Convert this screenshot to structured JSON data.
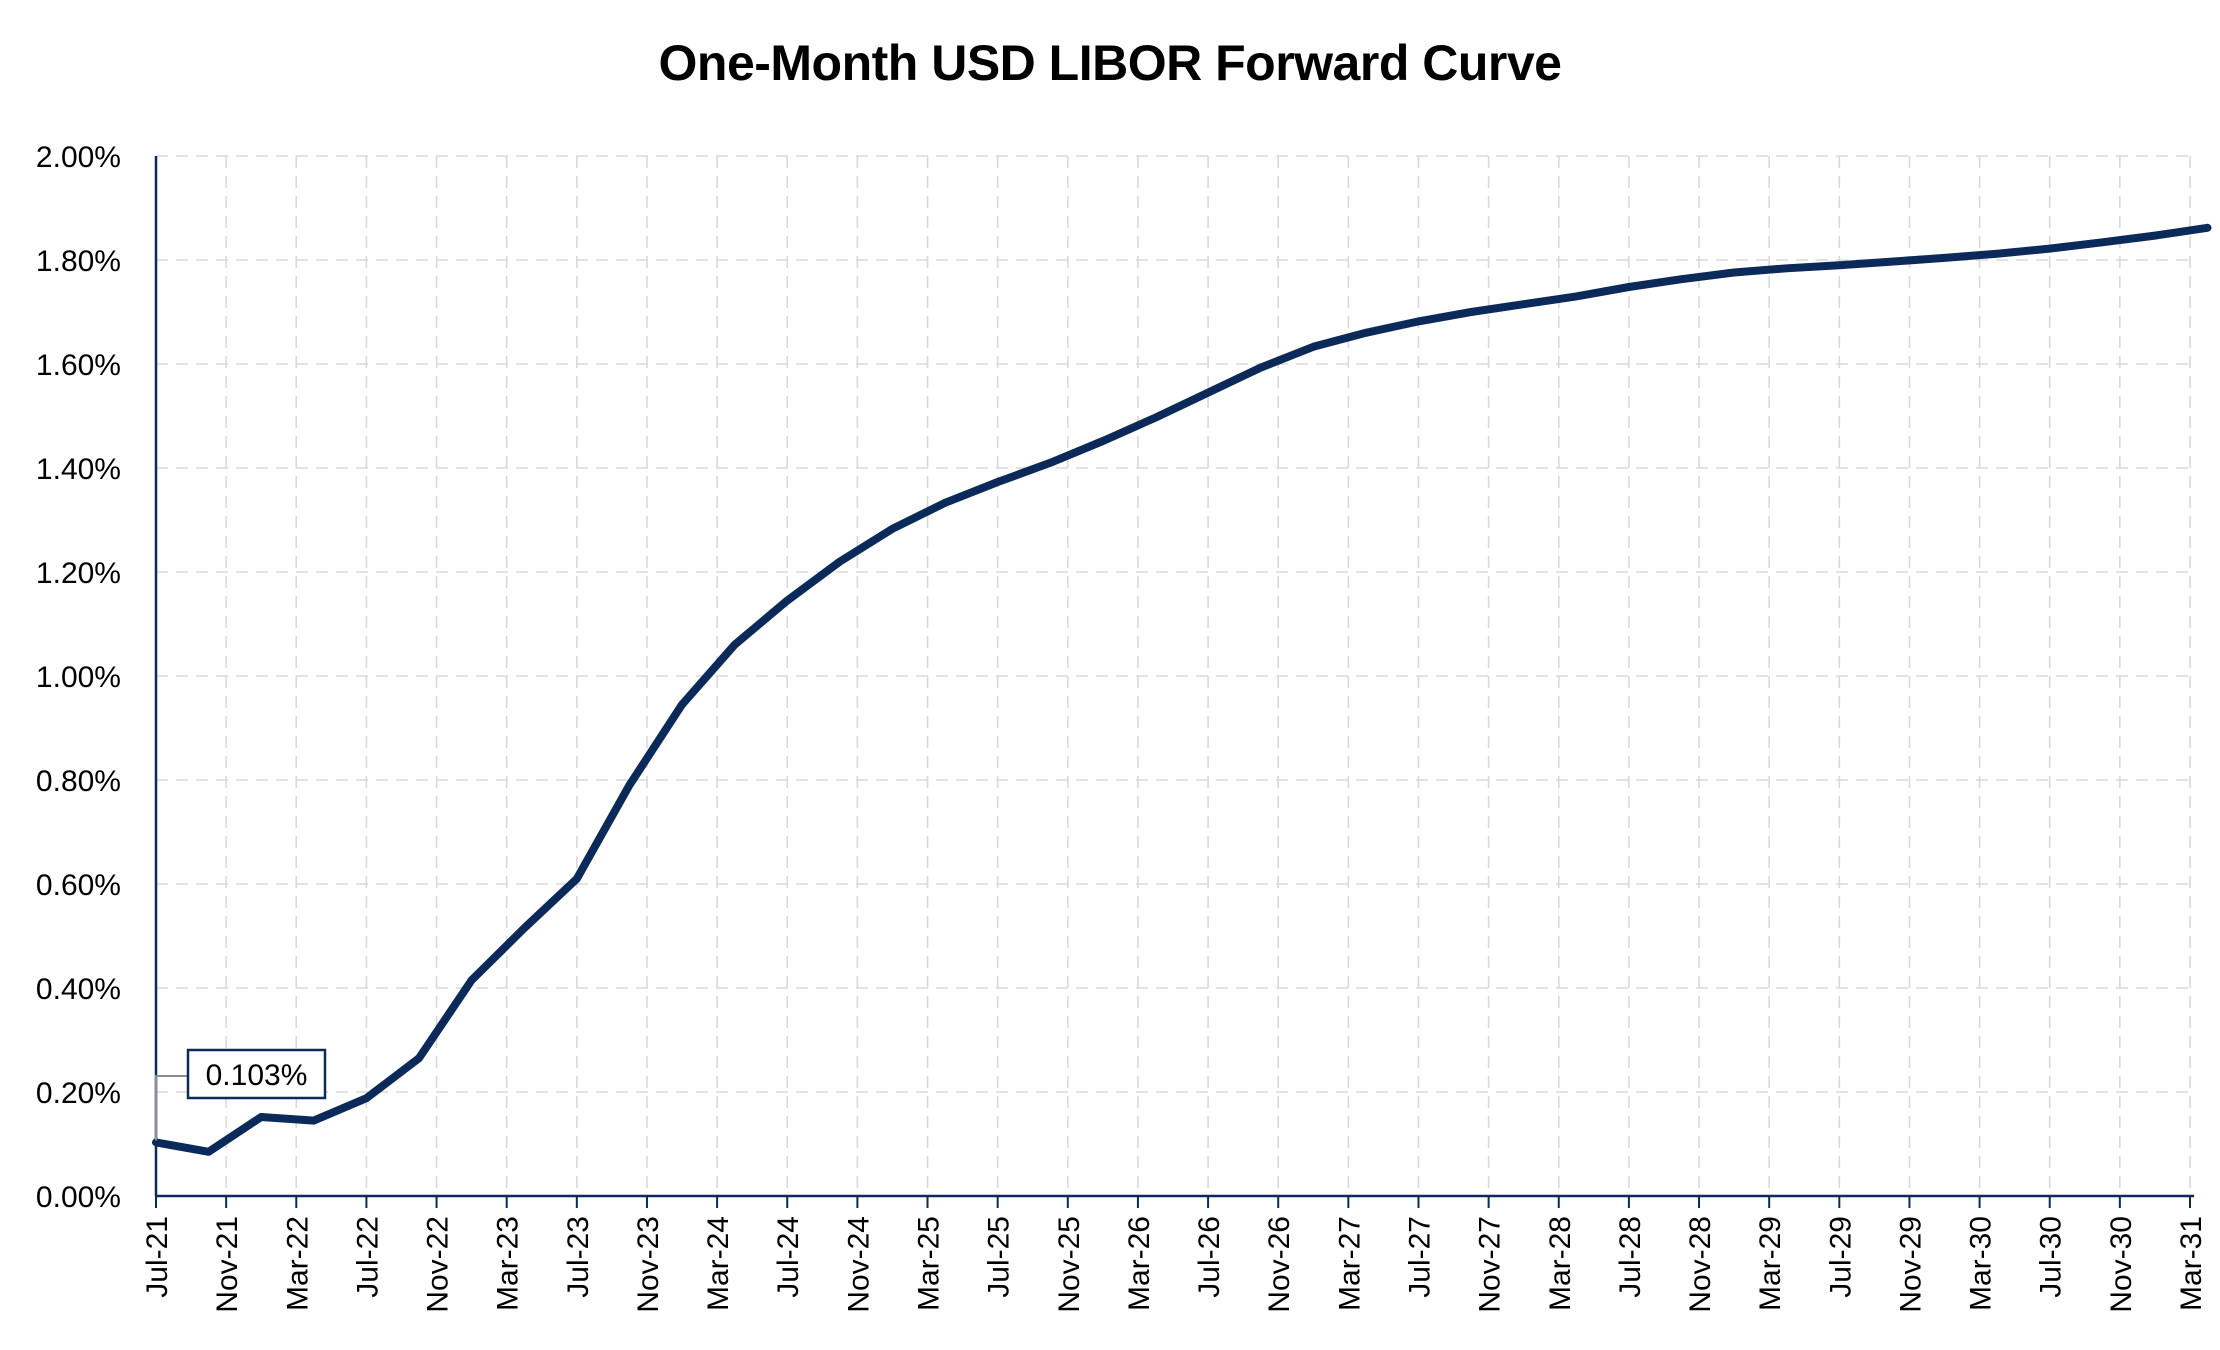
{
  "chart_data": {
    "type": "line",
    "title": "One-Month USD LIBOR Forward Curve",
    "xlabel": "",
    "ylabel": "",
    "ylim": [
      0,
      2.0
    ],
    "yticks": [
      0.0,
      0.2,
      0.4,
      0.6,
      0.8,
      1.0,
      1.2,
      1.4,
      1.6,
      1.8,
      2.0
    ],
    "ytick_labels": [
      "0.00%",
      "0.20%",
      "0.40%",
      "0.60%",
      "0.80%",
      "1.00%",
      "1.20%",
      "1.40%",
      "1.60%",
      "1.80%",
      "2.00%"
    ],
    "xlim": [
      "Jul-21",
      "Mar-31"
    ],
    "xtick_labels": [
      "Jul-21",
      "Nov-21",
      "Mar-22",
      "Jul-22",
      "Nov-22",
      "Mar-23",
      "Jul-23",
      "Nov-23",
      "Mar-24",
      "Jul-24",
      "Nov-24",
      "Mar-25",
      "Jul-25",
      "Nov-25",
      "Mar-26",
      "Jul-26",
      "Nov-26",
      "Mar-27",
      "Jul-27",
      "Nov-27",
      "Mar-28",
      "Jul-28",
      "Nov-28",
      "Mar-29",
      "Jul-29",
      "Nov-29",
      "Mar-30",
      "Jul-30",
      "Nov-30",
      "Mar-31"
    ],
    "grid": true,
    "line_color": "#0b2a5a",
    "series": [
      {
        "x": [
          "Jul-21",
          "Oct-21",
          "Jan-22",
          "Apr-22",
          "Jul-22",
          "Oct-22",
          "Jan-23",
          "Apr-23",
          "Jul-23",
          "Oct-23",
          "Jan-24",
          "Apr-24",
          "Jul-24",
          "Oct-24",
          "Jan-25",
          "Apr-25",
          "Jul-25",
          "Oct-25",
          "Jan-26",
          "Apr-26",
          "Jul-26",
          "Oct-26",
          "Jan-27",
          "Apr-27",
          "Jul-27",
          "Oct-27",
          "Jan-28",
          "Apr-28",
          "Jul-28",
          "Oct-28",
          "Jan-29",
          "Apr-29",
          "Jul-29",
          "Oct-29",
          "Jan-30",
          "Apr-30",
          "Jul-30",
          "Oct-30",
          "Jan-31",
          "Apr-31"
        ],
        "values": [
          0.103,
          0.085,
          0.152,
          0.145,
          0.188,
          0.265,
          0.415,
          0.515,
          0.61,
          0.79,
          0.945,
          1.06,
          1.145,
          1.22,
          1.283,
          1.333,
          1.373,
          1.41,
          1.452,
          1.497,
          1.545,
          1.593,
          1.633,
          1.66,
          1.682,
          1.7,
          1.715,
          1.73,
          1.748,
          1.763,
          1.776,
          1.784,
          1.79,
          1.797,
          1.804,
          1.812,
          1.822,
          1.834,
          1.847,
          1.862
        ]
      }
    ],
    "annotations": [
      {
        "label": "0.103%",
        "x": "Jul-21",
        "value": 0.103
      }
    ]
  }
}
